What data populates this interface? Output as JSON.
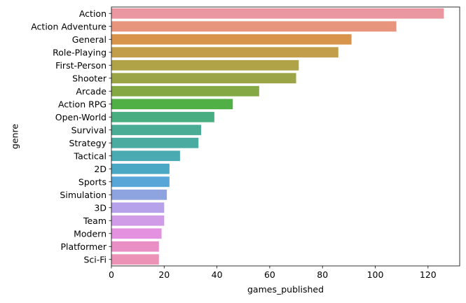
{
  "chart_data": {
    "type": "bar",
    "orientation": "horizontal",
    "title": "",
    "xlabel": "games_published",
    "ylabel": "genre",
    "xlim": [
      0,
      132
    ],
    "xticks": [
      0,
      20,
      40,
      60,
      80,
      100,
      120
    ],
    "grid": false,
    "legend": "none",
    "categories": [
      "Action",
      "Action Adventure",
      "General",
      "Role-Playing",
      "First-Person",
      "Shooter",
      "Arcade",
      "Action RPG",
      "Open-World",
      "Survival",
      "Strategy",
      "Tactical",
      "2D",
      "Sports",
      "Simulation",
      "3D",
      "Team",
      "Modern",
      "Platformer",
      "Sci-Fi"
    ],
    "values": [
      126,
      108,
      91,
      86,
      71,
      70,
      56,
      46,
      39,
      34,
      33,
      26,
      22,
      22,
      21,
      20,
      20,
      19,
      18,
      18
    ],
    "colors": [
      "#ea97a1",
      "#e8957d",
      "#d8944a",
      "#c29d4a",
      "#b0a347",
      "#9ba446",
      "#84a944",
      "#51b045",
      "#48ad80",
      "#4aac94",
      "#4aaba1",
      "#4aaab1",
      "#4ba8c5",
      "#58a6d7",
      "#8ea4e1",
      "#b5a2ea",
      "#d09be7",
      "#e491e0",
      "#e98fc6",
      "#eb92b6"
    ]
  }
}
